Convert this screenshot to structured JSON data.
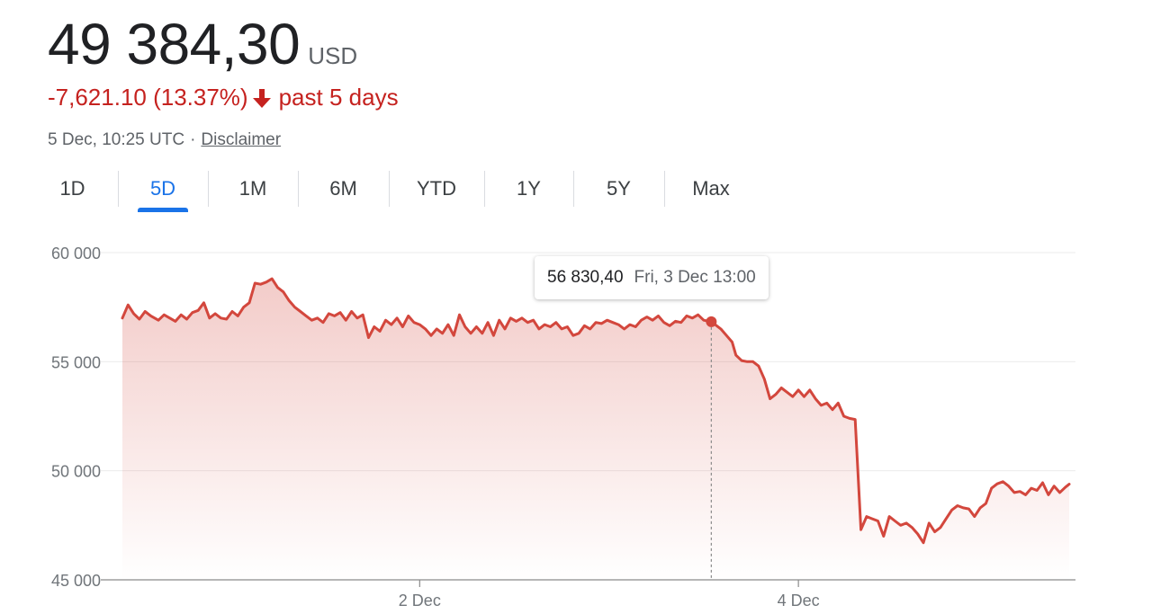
{
  "quote": {
    "price": "49 384,30",
    "currency": "USD",
    "change": "-7,621.10 (13.37%)",
    "period": "past 5 days",
    "timestamp": "5 Dec, 10:25 UTC",
    "separator": "·",
    "disclaimer": "Disclaimer"
  },
  "tabs": [
    {
      "label": "1D",
      "active": false
    },
    {
      "label": "5D",
      "active": true
    },
    {
      "label": "1M",
      "active": false
    },
    {
      "label": "6M",
      "active": false
    },
    {
      "label": "YTD",
      "active": false
    },
    {
      "label": "1Y",
      "active": false
    },
    {
      "label": "5Y",
      "active": false
    },
    {
      "label": "Max",
      "active": false
    }
  ],
  "colors": {
    "line": "#d3473d",
    "negative": "#c5221f",
    "accent": "#1a73e8",
    "grid": "#ebebeb"
  },
  "tooltip": {
    "value": "56 830,40",
    "time": "Fri, 3 Dec 13:00"
  },
  "chart_data": {
    "type": "area",
    "title": "",
    "xlabel": "",
    "ylabel": "",
    "x_unit": "days since 30 Nov 10:25 UTC",
    "xlim": [
      0,
      5
    ],
    "ylim": [
      45000,
      60000
    ],
    "y_ticks": [
      {
        "value": 60000,
        "label": "60 000"
      },
      {
        "value": 55000,
        "label": "55 000"
      },
      {
        "value": 50000,
        "label": "50 000"
      },
      {
        "value": 45000,
        "label": "45 000"
      }
    ],
    "x_ticks": [
      {
        "value": 1.57,
        "label": "2 Dec"
      },
      {
        "value": 3.57,
        "label": "4 Dec"
      }
    ],
    "grid": true,
    "highlight": {
      "x": 3.11,
      "y": 56830.4
    },
    "series": [
      {
        "values": [
          [
            0.0,
            57000
          ],
          [
            0.03,
            57600
          ],
          [
            0.06,
            57200
          ],
          [
            0.09,
            56950
          ],
          [
            0.12,
            57300
          ],
          [
            0.15,
            57100
          ],
          [
            0.19,
            56900
          ],
          [
            0.22,
            57150
          ],
          [
            0.25,
            57000
          ],
          [
            0.28,
            56850
          ],
          [
            0.31,
            57150
          ],
          [
            0.34,
            56950
          ],
          [
            0.37,
            57250
          ],
          [
            0.4,
            57350
          ],
          [
            0.43,
            57700
          ],
          [
            0.46,
            57000
          ],
          [
            0.49,
            57200
          ],
          [
            0.52,
            57000
          ],
          [
            0.55,
            56950
          ],
          [
            0.58,
            57300
          ],
          [
            0.61,
            57100
          ],
          [
            0.64,
            57500
          ],
          [
            0.67,
            57700
          ],
          [
            0.7,
            58600
          ],
          [
            0.73,
            58550
          ],
          [
            0.76,
            58650
          ],
          [
            0.79,
            58800
          ],
          [
            0.82,
            58400
          ],
          [
            0.85,
            58200
          ],
          [
            0.88,
            57800
          ],
          [
            0.91,
            57500
          ],
          [
            0.94,
            57300
          ],
          [
            0.97,
            57100
          ],
          [
            1.0,
            56900
          ],
          [
            1.03,
            57000
          ],
          [
            1.06,
            56800
          ],
          [
            1.09,
            57200
          ],
          [
            1.12,
            57100
          ],
          [
            1.15,
            57250
          ],
          [
            1.18,
            56900
          ],
          [
            1.21,
            57300
          ],
          [
            1.24,
            57000
          ],
          [
            1.27,
            57150
          ],
          [
            1.3,
            56100
          ],
          [
            1.33,
            56600
          ],
          [
            1.36,
            56400
          ],
          [
            1.39,
            56900
          ],
          [
            1.42,
            56700
          ],
          [
            1.45,
            57000
          ],
          [
            1.48,
            56600
          ],
          [
            1.51,
            57100
          ],
          [
            1.54,
            56800
          ],
          [
            1.57,
            56700
          ],
          [
            1.6,
            56500
          ],
          [
            1.63,
            56200
          ],
          [
            1.66,
            56500
          ],
          [
            1.69,
            56300
          ],
          [
            1.72,
            56700
          ],
          [
            1.75,
            56200
          ],
          [
            1.78,
            57150
          ],
          [
            1.81,
            56600
          ],
          [
            1.84,
            56300
          ],
          [
            1.87,
            56600
          ],
          [
            1.9,
            56300
          ],
          [
            1.93,
            56800
          ],
          [
            1.96,
            56200
          ],
          [
            1.99,
            56900
          ],
          [
            2.02,
            56500
          ],
          [
            2.05,
            57000
          ],
          [
            2.08,
            56850
          ],
          [
            2.11,
            57000
          ],
          [
            2.14,
            56800
          ],
          [
            2.17,
            56900
          ],
          [
            2.2,
            56500
          ],
          [
            2.23,
            56700
          ],
          [
            2.26,
            56600
          ],
          [
            2.29,
            56800
          ],
          [
            2.32,
            56500
          ],
          [
            2.35,
            56600
          ],
          [
            2.38,
            56200
          ],
          [
            2.41,
            56300
          ],
          [
            2.44,
            56650
          ],
          [
            2.47,
            56500
          ],
          [
            2.5,
            56800
          ],
          [
            2.53,
            56750
          ],
          [
            2.56,
            56900
          ],
          [
            2.59,
            56800
          ],
          [
            2.62,
            56700
          ],
          [
            2.65,
            56500
          ],
          [
            2.68,
            56700
          ],
          [
            2.71,
            56600
          ],
          [
            2.74,
            56900
          ],
          [
            2.77,
            57050
          ],
          [
            2.8,
            56900
          ],
          [
            2.83,
            57100
          ],
          [
            2.86,
            56800
          ],
          [
            2.89,
            56650
          ],
          [
            2.92,
            56850
          ],
          [
            2.95,
            56800
          ],
          [
            2.98,
            57100
          ],
          [
            3.01,
            57000
          ],
          [
            3.04,
            57150
          ],
          [
            3.07,
            56900
          ],
          [
            3.11,
            56830
          ],
          [
            3.13,
            56700
          ],
          [
            3.16,
            56500
          ],
          [
            3.19,
            56200
          ],
          [
            3.22,
            55900
          ],
          [
            3.24,
            55300
          ],
          [
            3.27,
            55050
          ],
          [
            3.3,
            55000
          ],
          [
            3.33,
            55000
          ],
          [
            3.36,
            54800
          ],
          [
            3.39,
            54200
          ],
          [
            3.42,
            53300
          ],
          [
            3.45,
            53500
          ],
          [
            3.48,
            53800
          ],
          [
            3.51,
            53600
          ],
          [
            3.54,
            53400
          ],
          [
            3.57,
            53700
          ],
          [
            3.6,
            53400
          ],
          [
            3.63,
            53700
          ],
          [
            3.66,
            53300
          ],
          [
            3.69,
            53000
          ],
          [
            3.72,
            53100
          ],
          [
            3.75,
            52800
          ],
          [
            3.78,
            53100
          ],
          [
            3.81,
            52500
          ],
          [
            3.84,
            52400
          ],
          [
            3.87,
            52350
          ],
          [
            3.9,
            47300
          ],
          [
            3.93,
            47900
          ],
          [
            3.96,
            47800
          ],
          [
            3.99,
            47700
          ],
          [
            4.02,
            47000
          ],
          [
            4.05,
            47900
          ],
          [
            4.08,
            47700
          ],
          [
            4.11,
            47500
          ],
          [
            4.14,
            47600
          ],
          [
            4.17,
            47400
          ],
          [
            4.2,
            47100
          ],
          [
            4.23,
            46700
          ],
          [
            4.26,
            47600
          ],
          [
            4.29,
            47200
          ],
          [
            4.32,
            47400
          ],
          [
            4.35,
            47800
          ],
          [
            4.38,
            48200
          ],
          [
            4.41,
            48400
          ],
          [
            4.44,
            48300
          ],
          [
            4.47,
            48250
          ],
          [
            4.5,
            47900
          ],
          [
            4.53,
            48300
          ],
          [
            4.56,
            48500
          ],
          [
            4.59,
            49200
          ],
          [
            4.62,
            49400
          ],
          [
            4.65,
            49500
          ],
          [
            4.68,
            49300
          ],
          [
            4.71,
            49000
          ],
          [
            4.74,
            49050
          ],
          [
            4.77,
            48900
          ],
          [
            4.8,
            49200
          ],
          [
            4.83,
            49100
          ],
          [
            4.86,
            49450
          ],
          [
            4.89,
            48900
          ],
          [
            4.92,
            49300
          ],
          [
            4.95,
            49000
          ],
          [
            4.98,
            49250
          ],
          [
            5.0,
            49384
          ]
        ]
      }
    ]
  }
}
